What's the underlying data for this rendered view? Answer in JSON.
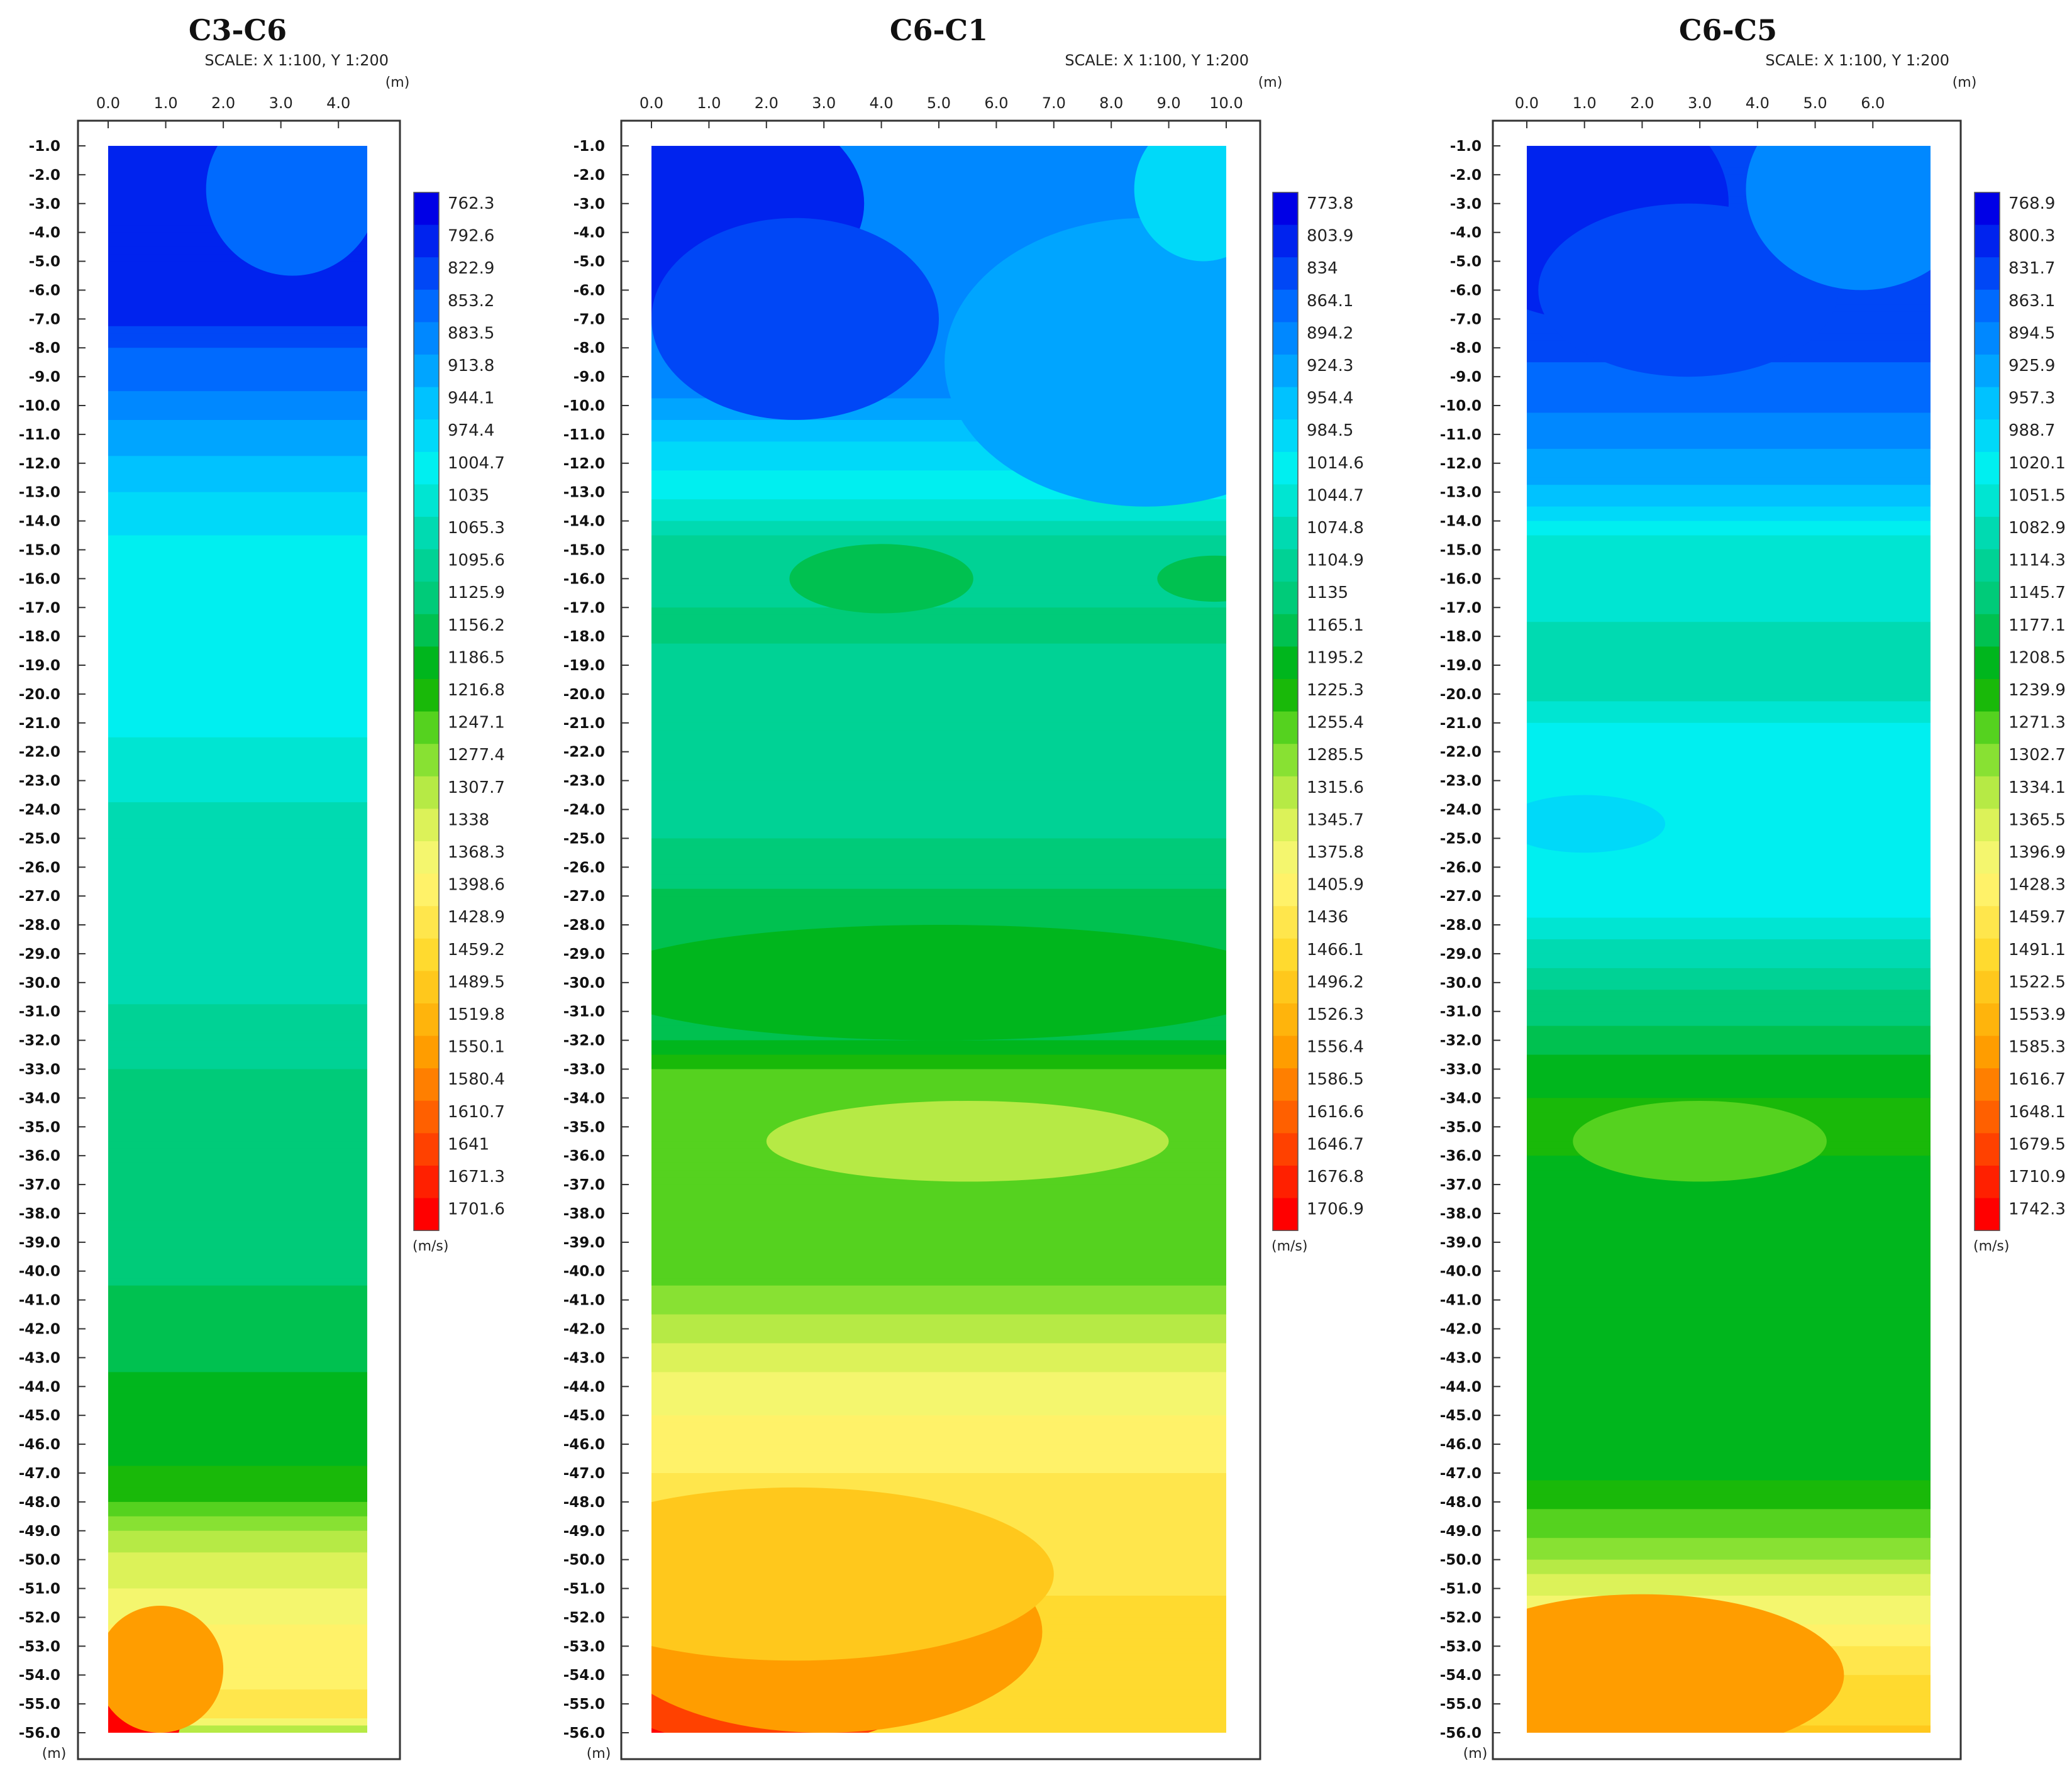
{
  "figure": {
    "scale_text": "SCALE: X 1:100, Y 1:200",
    "unit_m": "(m)",
    "unit_velocity": "(m/s)"
  },
  "chart_data": [
    {
      "type": "heatmap",
      "title": "C3-C6",
      "subtitle": "SCALE: X 1:100, Y 1:200",
      "xlabel": "(m)",
      "ylabel": "(m)",
      "x_ticks": [
        "0.0",
        "1.0",
        "2.0",
        "3.0",
        "4.0"
      ],
      "xlim": [
        0,
        4.5
      ],
      "ylim": [
        -56,
        -1
      ],
      "y_ticks": [
        "-1.0",
        "-2.0",
        "-3.0",
        "-4.0",
        "-5.0",
        "-6.0",
        "-7.0",
        "-8.0",
        "-9.0",
        "-10.0",
        "-11.0",
        "-12.0",
        "-13.0",
        "-14.0",
        "-15.0",
        "-16.0",
        "-17.0",
        "-18.0",
        "-19.0",
        "-20.0",
        "-21.0",
        "-22.0",
        "-23.0",
        "-24.0",
        "-25.0",
        "-26.0",
        "-27.0",
        "-28.0",
        "-29.0",
        "-30.0",
        "-31.0",
        "-32.0",
        "-33.0",
        "-34.0",
        "-35.0",
        "-36.0",
        "-37.0",
        "-38.0",
        "-39.0",
        "-40.0",
        "-41.0",
        "-42.0",
        "-43.0",
        "-44.0",
        "-45.0",
        "-46.0",
        "-47.0",
        "-48.0",
        "-49.0",
        "-50.0",
        "-51.0",
        "-52.0",
        "-53.0",
        "-54.0",
        "-55.0",
        "-56.0"
      ],
      "colorbar_unit": "(m/s)",
      "colorbar_levels": [
        "762.3",
        "792.6",
        "822.9",
        "853.2",
        "883.5",
        "913.8",
        "944.1",
        "974.4",
        "1004.7",
        "1035",
        "1065.3",
        "1095.6",
        "1125.9",
        "1156.2",
        "1186.5",
        "1216.8",
        "1247.1",
        "1277.4",
        "1307.7",
        "1338",
        "1368.3",
        "1398.6",
        "1428.9",
        "1459.2",
        "1489.5",
        "1519.8",
        "1550.1",
        "1580.4",
        "1610.7",
        "1641",
        "1671.3",
        "1701.6"
      ],
      "depth_profile": [
        {
          "depth": -1,
          "velocity": 790
        },
        {
          "depth": -7,
          "velocity": 790
        },
        {
          "depth": -8,
          "velocity": 840
        },
        {
          "depth": -10,
          "velocity": 880
        },
        {
          "depth": -11,
          "velocity": 910
        },
        {
          "depth": -12.5,
          "velocity": 950
        },
        {
          "depth": -14,
          "velocity": 975
        },
        {
          "depth": -15,
          "velocity": 1000
        },
        {
          "depth": -21,
          "velocity": 1015
        },
        {
          "depth": -23,
          "velocity": 1040
        },
        {
          "depth": -26,
          "velocity": 1075
        },
        {
          "depth": -29,
          "velocity": 1060
        },
        {
          "depth": -33,
          "velocity": 1110
        },
        {
          "depth": -35,
          "velocity": 1140
        },
        {
          "depth": -40,
          "velocity": 1135
        },
        {
          "depth": -43,
          "velocity": 1170
        },
        {
          "depth": -46,
          "velocity": 1180
        },
        {
          "depth": -48,
          "velocity": 1230
        },
        {
          "depth": -49,
          "velocity": 1290
        },
        {
          "depth": -50,
          "velocity": 1330
        },
        {
          "depth": -52,
          "velocity": 1380
        },
        {
          "depth": -54,
          "velocity": 1410
        },
        {
          "depth": -55.5,
          "velocity": 1420
        },
        {
          "depth": -56,
          "velocity": 1260
        }
      ],
      "anomalies": [
        {
          "x": 0.4,
          "depth": -55,
          "rx": 0.9,
          "ry": 2.5,
          "velocity": 1690
        },
        {
          "x": 0.9,
          "depth": -53.8,
          "rx": 1.1,
          "ry": 2.2,
          "velocity": 1560
        },
        {
          "x": 3.2,
          "depth": -2.5,
          "rx": 1.5,
          "ry": 3.0,
          "velocity": 855
        }
      ]
    },
    {
      "type": "heatmap",
      "title": "C6-C1",
      "subtitle": "SCALE: X 1:100, Y 1:200",
      "xlabel": "(m)",
      "ylabel": "(m)",
      "x_ticks": [
        "0.0",
        "1.0",
        "2.0",
        "3.0",
        "4.0",
        "5.0",
        "6.0",
        "7.0",
        "8.0",
        "9.0",
        "10.0"
      ],
      "xlim": [
        0,
        10
      ],
      "ylim": [
        -56,
        -1
      ],
      "y_ticks": [
        "-1.0",
        "-2.0",
        "-3.0",
        "-4.0",
        "-5.0",
        "-6.0",
        "-7.0",
        "-8.0",
        "-9.0",
        "-10.0",
        "-11.0",
        "-12.0",
        "-13.0",
        "-14.0",
        "-15.0",
        "-16.0",
        "-17.0",
        "-18.0",
        "-19.0",
        "-20.0",
        "-21.0",
        "-22.0",
        "-23.0",
        "-24.0",
        "-25.0",
        "-26.0",
        "-27.0",
        "-28.0",
        "-29.0",
        "-30.0",
        "-31.0",
        "-32.0",
        "-33.0",
        "-34.0",
        "-35.0",
        "-36.0",
        "-37.0",
        "-38.0",
        "-39.0",
        "-40.0",
        "-41.0",
        "-42.0",
        "-43.0",
        "-44.0",
        "-45.0",
        "-46.0",
        "-47.0",
        "-48.0",
        "-49.0",
        "-50.0",
        "-51.0",
        "-52.0",
        "-53.0",
        "-54.0",
        "-55.0",
        "-56.0"
      ],
      "colorbar_unit": "(m/s)",
      "colorbar_levels": [
        "773.8",
        "803.9",
        "834",
        "864.1",
        "894.2",
        "924.3",
        "954.4",
        "984.5",
        "1014.6",
        "1044.7",
        "1074.8",
        "1104.9",
        "1135",
        "1165.1",
        "1195.2",
        "1225.3",
        "1255.4",
        "1285.5",
        "1315.6",
        "1345.7",
        "1375.8",
        "1405.9",
        "1436",
        "1466.1",
        "1496.2",
        "1526.3",
        "1556.4",
        "1586.5",
        "1616.6",
        "1646.7",
        "1676.8",
        "1706.9"
      ],
      "depth_profile": [
        {
          "depth": -1,
          "velocity": 880
        },
        {
          "depth": -8,
          "velocity": 880
        },
        {
          "depth": -9.5,
          "velocity": 900
        },
        {
          "depth": -11,
          "velocity": 960
        },
        {
          "depth": -12.5,
          "velocity": 1005
        },
        {
          "depth": -14,
          "velocity": 1060
        },
        {
          "depth": -15,
          "velocity": 1110
        },
        {
          "depth": -18,
          "velocity": 1125
        },
        {
          "depth": -19.5,
          "velocity": 1095
        },
        {
          "depth": -24,
          "velocity": 1095
        },
        {
          "depth": -26,
          "velocity": 1140
        },
        {
          "depth": -28,
          "velocity": 1170
        },
        {
          "depth": -32,
          "velocity": 1175
        },
        {
          "depth": -33,
          "velocity": 1245
        },
        {
          "depth": -40,
          "velocity": 1260
        },
        {
          "depth": -41.5,
          "velocity": 1300
        },
        {
          "depth": -43.5,
          "velocity": 1360
        },
        {
          "depth": -46,
          "velocity": 1410
        },
        {
          "depth": -48,
          "velocity": 1435
        },
        {
          "depth": -50,
          "velocity": 1445
        },
        {
          "depth": -52,
          "velocity": 1455
        },
        {
          "depth": -56,
          "velocity": 1460
        }
      ],
      "anomalies": [
        {
          "x": 0.5,
          "depth": -3,
          "rx": 3.2,
          "ry": 4.0,
          "velocity": 800
        },
        {
          "x": 2.5,
          "depth": -7,
          "rx": 2.5,
          "ry": 3.5,
          "velocity": 845
        },
        {
          "x": 8.6,
          "depth": -8.5,
          "rx": 3.5,
          "ry": 5.0,
          "velocity": 925
        },
        {
          "x": 9.6,
          "depth": -2.5,
          "rx": 1.2,
          "ry": 2.5,
          "velocity": 980
        },
        {
          "x": 4.0,
          "depth": -16,
          "rx": 1.6,
          "ry": 1.2,
          "velocity": 1170
        },
        {
          "x": 9.8,
          "depth": -16,
          "rx": 1.0,
          "ry": 0.8,
          "velocity": 1165
        },
        {
          "x": 5.0,
          "depth": -30,
          "rx": 6.0,
          "ry": 2.0,
          "velocity": 1195
        },
        {
          "x": 5.5,
          "depth": -35.5,
          "rx": 3.5,
          "ry": 1.4,
          "velocity": 1310
        },
        {
          "x": 0.6,
          "depth": -54.5,
          "rx": 2.5,
          "ry": 3.8,
          "velocity": 1700
        },
        {
          "x": 2.0,
          "depth": -53.5,
          "rx": 3.2,
          "ry": 3.0,
          "velocity": 1650
        },
        {
          "x": 3.0,
          "depth": -52.5,
          "rx": 3.8,
          "ry": 3.5,
          "velocity": 1560
        },
        {
          "x": 2.5,
          "depth": -50.5,
          "rx": 4.5,
          "ry": 3.0,
          "velocity": 1500
        }
      ]
    },
    {
      "type": "heatmap",
      "title": "C6-C5",
      "subtitle": "SCALE: X 1:100, Y 1:200",
      "xlabel": "(m)",
      "ylabel": "(m)",
      "x_ticks": [
        "0.0",
        "1.0",
        "2.0",
        "3.0",
        "4.0",
        "5.0",
        "6.0"
      ],
      "xlim": [
        0,
        7
      ],
      "ylim": [
        -56,
        -1
      ],
      "y_ticks": [
        "-1.0",
        "-2.0",
        "-3.0",
        "-4.0",
        "-5.0",
        "-6.0",
        "-7.0",
        "-8.0",
        "-9.0",
        "-10.0",
        "-11.0",
        "-12.0",
        "-13.0",
        "-14.0",
        "-15.0",
        "-16.0",
        "-17.0",
        "-18.0",
        "-19.0",
        "-20.0",
        "-21.0",
        "-22.0",
        "-23.0",
        "-24.0",
        "-25.0",
        "-26.0",
        "-27.0",
        "-28.0",
        "-29.0",
        "-30.0",
        "-31.0",
        "-32.0",
        "-33.0",
        "-34.0",
        "-35.0",
        "-36.0",
        "-37.0",
        "-38.0",
        "-39.0",
        "-40.0",
        "-41.0",
        "-42.0",
        "-43.0",
        "-44.0",
        "-45.0",
        "-46.0",
        "-47.0",
        "-48.0",
        "-49.0",
        "-50.0",
        "-51.0",
        "-52.0",
        "-53.0",
        "-54.0",
        "-55.0",
        "-56.0"
      ],
      "colorbar_unit": "(m/s)",
      "colorbar_levels": [
        "768.9",
        "800.3",
        "831.7",
        "863.1",
        "894.5",
        "925.9",
        "957.3",
        "988.7",
        "1020.1",
        "1051.5",
        "1082.9",
        "1114.3",
        "1145.7",
        "1177.1",
        "1208.5",
        "1239.9",
        "1271.3",
        "1302.7",
        "1334.1",
        "1365.5",
        "1396.9",
        "1428.3",
        "1459.7",
        "1491.1",
        "1522.5",
        "1553.9",
        "1585.3",
        "1616.7",
        "1648.1",
        "1679.5",
        "1710.9",
        "1742.3"
      ],
      "depth_profile": [
        {
          "depth": -1,
          "velocity": 840
        },
        {
          "depth": -8,
          "velocity": 840
        },
        {
          "depth": -10,
          "velocity": 870
        },
        {
          "depth": -12,
          "velocity": 920
        },
        {
          "depth": -13.5,
          "velocity": 970
        },
        {
          "depth": -15,
          "velocity": 1060
        },
        {
          "depth": -20,
          "velocity": 1075
        },
        {
          "depth": -21,
          "velocity": 1035
        },
        {
          "depth": -27,
          "velocity": 1010
        },
        {
          "depth": -28.5,
          "velocity": 1070
        },
        {
          "depth": -31,
          "velocity": 1150
        },
        {
          "depth": -32.5,
          "velocity": 1195
        },
        {
          "depth": -34,
          "velocity": 1225
        },
        {
          "depth": -47,
          "velocity": 1220
        },
        {
          "depth": -48.5,
          "velocity": 1260
        },
        {
          "depth": -50,
          "velocity": 1320
        },
        {
          "depth": -51,
          "velocity": 1370
        },
        {
          "depth": -52.5,
          "velocity": 1420
        },
        {
          "depth": -54,
          "velocity": 1480
        },
        {
          "depth": -56,
          "velocity": 1510
        }
      ],
      "anomalies": [
        {
          "x": 1.0,
          "depth": -3,
          "rx": 2.5,
          "ry": 4.0,
          "velocity": 790
        },
        {
          "x": 2.8,
          "depth": -6,
          "rx": 2.6,
          "ry": 3.0,
          "velocity": 820
        },
        {
          "x": 5.8,
          "depth": -2.5,
          "rx": 2.0,
          "ry": 3.5,
          "velocity": 900
        },
        {
          "x": 1.0,
          "depth": -24.5,
          "rx": 1.4,
          "ry": 1.0,
          "velocity": 985
        },
        {
          "x": 3.0,
          "depth": -35.5,
          "rx": 2.2,
          "ry": 1.4,
          "velocity": 1265
        },
        {
          "x": 1.5,
          "depth": -55.5,
          "rx": 2.8,
          "ry": 2.2,
          "velocity": 1700
        },
        {
          "x": 2.0,
          "depth": -54,
          "rx": 3.5,
          "ry": 2.8,
          "velocity": 1590
        }
      ]
    }
  ]
}
